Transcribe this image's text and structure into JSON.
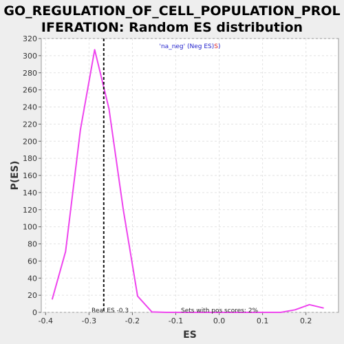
{
  "chart_data": {
    "type": "line",
    "title_lines": [
      "GO_REGULATION_OF_CELL_POPULATION_PROL",
      "IFERATION: Random ES distribution"
    ],
    "xlabel": "ES",
    "ylabel": "P(ES)",
    "xlim": [
      -0.41,
      0.275
    ],
    "ylim": [
      0,
      320
    ],
    "xticks": [
      -0.4,
      -0.3,
      -0.2,
      -0.1,
      0.0,
      0.1,
      0.2
    ],
    "xtick_labels": [
      "-0.4",
      "-0.3",
      "-0.2",
      "-0.1",
      "0.0",
      "0.1",
      "0.2"
    ],
    "yticks": [
      0,
      20,
      40,
      60,
      80,
      100,
      120,
      140,
      160,
      180,
      200,
      220,
      240,
      260,
      280,
      300,
      320
    ],
    "ytick_labels": [
      "0",
      "20",
      "40",
      "60",
      "80",
      "100",
      "120",
      "140",
      "160",
      "180",
      "200",
      "220",
      "240",
      "260",
      "280",
      "300",
      "320"
    ],
    "grid": true,
    "series": [
      {
        "color": "#ee44ee",
        "x": [
          -0.385,
          -0.354,
          -0.32,
          -0.287,
          -0.254,
          -0.221,
          -0.188,
          -0.155,
          -0.122,
          -0.089,
          -0.056,
          0.01,
          0.076,
          0.142,
          0.175,
          0.208,
          0.241
        ],
        "y": [
          15,
          71,
          213,
          307,
          238,
          120,
          19,
          0.5,
          0,
          0,
          0,
          0,
          0,
          0,
          3,
          9,
          5
        ]
      }
    ],
    "real_es": -0.266,
    "real_es_label": "Real ES -0.3",
    "pos_scores_label": "Sets with pos scores: 2%",
    "legend": {
      "position": "top-center",
      "parts": [
        {
          "text": "'na_neg' (Neg ES)",
          "color": "#2222cc"
        },
        {
          "text": "S",
          "color": "#dd2222"
        },
        {
          "text": ")",
          "color": "#2222cc"
        }
      ]
    }
  }
}
